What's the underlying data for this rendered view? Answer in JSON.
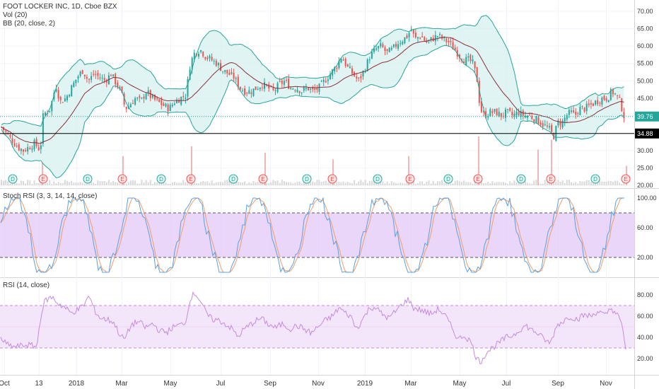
{
  "header": {
    "symbol_line": "FOOT LOCKER INC, 1D, Cboe BZX",
    "vol_line": "Vol (20)",
    "bb_line": "BB (20, close, 2)"
  },
  "pane_labels": {
    "stoch": "Stoch RSI (3, 3, 14, 14, close)",
    "rsi": "RSI (14, close)"
  },
  "colors": {
    "up": "#26a69a",
    "down": "#ef5350",
    "bb_fill": "#d4f0ef",
    "bb_band": "#26a69a",
    "bb_basis": "#8c2f39",
    "stoch_fill": "#e3c8f7",
    "rsi_fill": "#f3e6fb",
    "rsi_line": "#c48bde",
    "stoch_k": "#5aa1e0",
    "stoch_d": "#f39c6b",
    "price_tag": "#26a69a",
    "level_tag": "#000000"
  },
  "chart_data": [
    {
      "type": "candlestick",
      "title": "FOOT LOCKER INC, 1D, Cboe BZX",
      "x_ticks": [
        "Oct",
        "13",
        "2018",
        "Mar",
        "May",
        "Jul",
        "Sep",
        "Nov",
        "2019",
        "Mar",
        "May",
        "Jul",
        "Sep",
        "Nov"
      ],
      "y_ticks": [
        "70.00",
        "65.00",
        "60.00",
        "55.00",
        "50.00",
        "45.00",
        "40.00",
        "35.00",
        "30.00",
        "25.00",
        "20.00"
      ],
      "ylim": [
        20,
        72
      ],
      "last_price": "39.76",
      "horizontal_level": "34.88",
      "overlays": [
        "Vol (20)",
        "BB (20, close, 2)"
      ],
      "trend_anchors": [
        [
          0,
          37
        ],
        [
          8,
          35
        ],
        [
          16,
          33
        ],
        [
          24,
          31
        ],
        [
          32,
          30
        ],
        [
          40,
          31
        ],
        [
          48,
          32
        ],
        [
          56,
          30
        ],
        [
          60,
          40
        ],
        [
          64,
          41
        ],
        [
          70,
          42
        ],
        [
          78,
          49
        ],
        [
          84,
          44
        ],
        [
          92,
          45
        ],
        [
          100,
          48
        ],
        [
          108,
          51
        ],
        [
          116,
          53
        ],
        [
          124,
          50
        ],
        [
          132,
          52
        ],
        [
          140,
          51
        ],
        [
          148,
          50
        ],
        [
          156,
          52
        ],
        [
          164,
          49
        ],
        [
          170,
          47
        ],
        [
          176,
          42
        ],
        [
          182,
          43
        ],
        [
          190,
          45
        ],
        [
          198,
          44
        ],
        [
          206,
          47
        ],
        [
          214,
          45
        ],
        [
          222,
          44
        ],
        [
          230,
          43
        ],
        [
          238,
          42
        ],
        [
          246,
          44
        ],
        [
          254,
          45
        ],
        [
          262,
          46
        ],
        [
          268,
          55
        ],
        [
          274,
          58
        ],
        [
          282,
          59
        ],
        [
          290,
          57
        ],
        [
          298,
          56
        ],
        [
          306,
          55
        ],
        [
          314,
          53
        ],
        [
          322,
          52
        ],
        [
          330,
          51
        ],
        [
          338,
          48
        ],
        [
          346,
          47
        ],
        [
          354,
          47
        ],
        [
          362,
          48
        ],
        [
          370,
          49
        ],
        [
          378,
          48
        ],
        [
          386,
          47
        ],
        [
          394,
          49
        ],
        [
          402,
          50
        ],
        [
          410,
          48
        ],
        [
          418,
          48
        ],
        [
          426,
          47
        ],
        [
          434,
          48
        ],
        [
          442,
          47
        ],
        [
          450,
          48
        ],
        [
          458,
          50
        ],
        [
          466,
          52
        ],
        [
          474,
          54
        ],
        [
          482,
          57
        ],
        [
          490,
          54
        ],
        [
          498,
          52
        ],
        [
          506,
          50
        ],
        [
          514,
          53
        ],
        [
          522,
          57
        ],
        [
          530,
          59
        ],
        [
          538,
          60
        ],
        [
          546,
          58
        ],
        [
          554,
          59
        ],
        [
          562,
          61
        ],
        [
          570,
          62
        ],
        [
          576,
          63
        ],
        [
          580,
          65
        ],
        [
          586,
          62
        ],
        [
          594,
          63
        ],
        [
          602,
          61
        ],
        [
          610,
          62
        ],
        [
          618,
          63
        ],
        [
          626,
          62
        ],
        [
          634,
          61
        ],
        [
          642,
          59
        ],
        [
          650,
          57
        ],
        [
          656,
          56
        ],
        [
          662,
          56
        ],
        [
          668,
          55
        ],
        [
          674,
          50
        ],
        [
          678,
          42
        ],
        [
          684,
          40
        ],
        [
          692,
          41
        ],
        [
          700,
          41
        ],
        [
          708,
          40
        ],
        [
          716,
          41
        ],
        [
          724,
          40
        ],
        [
          732,
          41
        ],
        [
          740,
          40
        ],
        [
          748,
          40
        ],
        [
          756,
          39
        ],
        [
          764,
          38
        ],
        [
          770,
          37
        ],
        [
          776,
          36
        ],
        [
          782,
          34
        ],
        [
          788,
          38
        ],
        [
          794,
          38
        ],
        [
          800,
          40
        ],
        [
          806,
          41
        ],
        [
          812,
          40
        ],
        [
          818,
          42
        ],
        [
          826,
          42
        ],
        [
          834,
          43
        ],
        [
          842,
          44
        ],
        [
          850,
          45
        ],
        [
          858,
          45
        ],
        [
          864,
          47
        ],
        [
          870,
          46
        ],
        [
          876,
          44
        ],
        [
          880,
          41
        ],
        [
          884,
          38
        ]
      ],
      "volume_spikes": [
        [
          59,
          14
        ],
        [
          173,
          18
        ],
        [
          270,
          24
        ],
        [
          374,
          20
        ],
        [
          470,
          16
        ],
        [
          577,
          18
        ],
        [
          676,
          30
        ],
        [
          760,
          22
        ],
        [
          779,
          28
        ],
        [
          885,
          12
        ]
      ],
      "event_markers": [
        {
          "x": 18,
          "label": "D",
          "kind": "dividend"
        },
        {
          "x": 61,
          "label": "E",
          "kind": "earnings"
        },
        {
          "x": 124,
          "label": "D",
          "kind": "dividend"
        },
        {
          "x": 173,
          "label": "E",
          "kind": "earnings"
        },
        {
          "x": 228,
          "label": "D",
          "kind": "dividend"
        },
        {
          "x": 270,
          "label": "E",
          "kind": "earnings"
        },
        {
          "x": 330,
          "label": "D",
          "kind": "dividend"
        },
        {
          "x": 372,
          "label": "E",
          "kind": "earnings"
        },
        {
          "x": 434,
          "label": "D",
          "kind": "dividend"
        },
        {
          "x": 470,
          "label": "E",
          "kind": "earnings"
        },
        {
          "x": 534,
          "label": "D",
          "kind": "dividend"
        },
        {
          "x": 580,
          "label": "E",
          "kind": "earnings"
        },
        {
          "x": 634,
          "label": "D",
          "kind": "dividend"
        },
        {
          "x": 676,
          "label": "E",
          "kind": "earnings"
        },
        {
          "x": 737,
          "label": "D",
          "kind": "dividend"
        },
        {
          "x": 779,
          "label": "E",
          "kind": "earnings"
        },
        {
          "x": 842,
          "label": "D",
          "kind": "dividend"
        },
        {
          "x": 885,
          "label": "E",
          "kind": "earnings"
        }
      ]
    },
    {
      "type": "line",
      "title": "Stoch RSI (3, 3, 14, 14, close)",
      "y_ticks": [
        "100.00",
        "60.00",
        "20.00"
      ],
      "ylim": [
        0,
        100
      ],
      "band": [
        20,
        80
      ]
    },
    {
      "type": "line",
      "title": "RSI (14, close)",
      "y_ticks": [
        "80.00",
        "60.00",
        "40.00",
        "20.00"
      ],
      "ylim": [
        10,
        90
      ],
      "band": [
        30,
        70
      ],
      "rsi_anchors": [
        [
          0,
          40
        ],
        [
          10,
          33
        ],
        [
          20,
          31
        ],
        [
          30,
          32
        ],
        [
          40,
          33
        ],
        [
          52,
          31
        ],
        [
          58,
          62
        ],
        [
          64,
          75
        ],
        [
          74,
          78
        ],
        [
          82,
          72
        ],
        [
          92,
          68
        ],
        [
          100,
          63
        ],
        [
          110,
          66
        ],
        [
          118,
          70
        ],
        [
          126,
          79
        ],
        [
          134,
          65
        ],
        [
          142,
          58
        ],
        [
          150,
          57
        ],
        [
          160,
          55
        ],
        [
          170,
          42
        ],
        [
          176,
          38
        ],
        [
          186,
          52
        ],
        [
          196,
          55
        ],
        [
          206,
          49
        ],
        [
          216,
          53
        ],
        [
          226,
          46
        ],
        [
          236,
          45
        ],
        [
          246,
          50
        ],
        [
          256,
          52
        ],
        [
          264,
          56
        ],
        [
          268,
          76
        ],
        [
          276,
          82
        ],
        [
          284,
          74
        ],
        [
          292,
          62
        ],
        [
          300,
          57
        ],
        [
          310,
          56
        ],
        [
          320,
          52
        ],
        [
          330,
          47
        ],
        [
          336,
          40
        ],
        [
          344,
          47
        ],
        [
          352,
          51
        ],
        [
          360,
          55
        ],
        [
          370,
          58
        ],
        [
          380,
          52
        ],
        [
          390,
          49
        ],
        [
          400,
          53
        ],
        [
          410,
          48
        ],
        [
          420,
          51
        ],
        [
          430,
          48
        ],
        [
          440,
          44
        ],
        [
          450,
          50
        ],
        [
          460,
          56
        ],
        [
          470,
          60
        ],
        [
          480,
          68
        ],
        [
          488,
          63
        ],
        [
          496,
          60
        ],
        [
          504,
          48
        ],
        [
          514,
          58
        ],
        [
          522,
          67
        ],
        [
          530,
          69
        ],
        [
          540,
          62
        ],
        [
          550,
          58
        ],
        [
          560,
          65
        ],
        [
          570,
          72
        ],
        [
          578,
          76
        ],
        [
          584,
          68
        ],
        [
          594,
          66
        ],
        [
          602,
          64
        ],
        [
          610,
          62
        ],
        [
          620,
          67
        ],
        [
          630,
          60
        ],
        [
          640,
          48
        ],
        [
          648,
          38
        ],
        [
          656,
          42
        ],
        [
          666,
          36
        ],
        [
          674,
          20
        ],
        [
          680,
          17
        ],
        [
          688,
          26
        ],
        [
          696,
          30
        ],
        [
          706,
          35
        ],
        [
          716,
          40
        ],
        [
          726,
          42
        ],
        [
          736,
          48
        ],
        [
          744,
          51
        ],
        [
          752,
          47
        ],
        [
          760,
          44
        ],
        [
          770,
          38
        ],
        [
          778,
          34
        ],
        [
          788,
          52
        ],
        [
          796,
          55
        ],
        [
          806,
          60
        ],
        [
          816,
          57
        ],
        [
          826,
          61
        ],
        [
          836,
          60
        ],
        [
          846,
          65
        ],
        [
          856,
          60
        ],
        [
          864,
          68
        ],
        [
          872,
          62
        ],
        [
          878,
          55
        ],
        [
          882,
          42
        ],
        [
          885,
          30
        ]
      ]
    }
  ],
  "x_ticks": [
    "Oct",
    "13",
    "2018",
    "Mar",
    "May",
    "Jul",
    "Sep",
    "Nov",
    "2019",
    "Mar",
    "May",
    "Jul",
    "Sep",
    "Nov"
  ]
}
